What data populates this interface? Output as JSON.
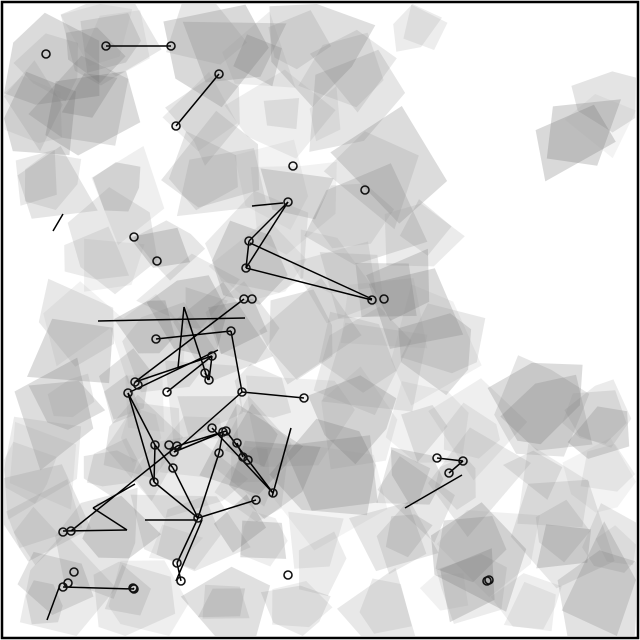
{
  "figure": {
    "background": "#ffffff",
    "frame_color": "#000000",
    "patch_fill": "#6e6e6e",
    "patch_fill_light": "#9a9a9a",
    "edge_color": "#000000",
    "node_stroke": "#111111"
  }
}
